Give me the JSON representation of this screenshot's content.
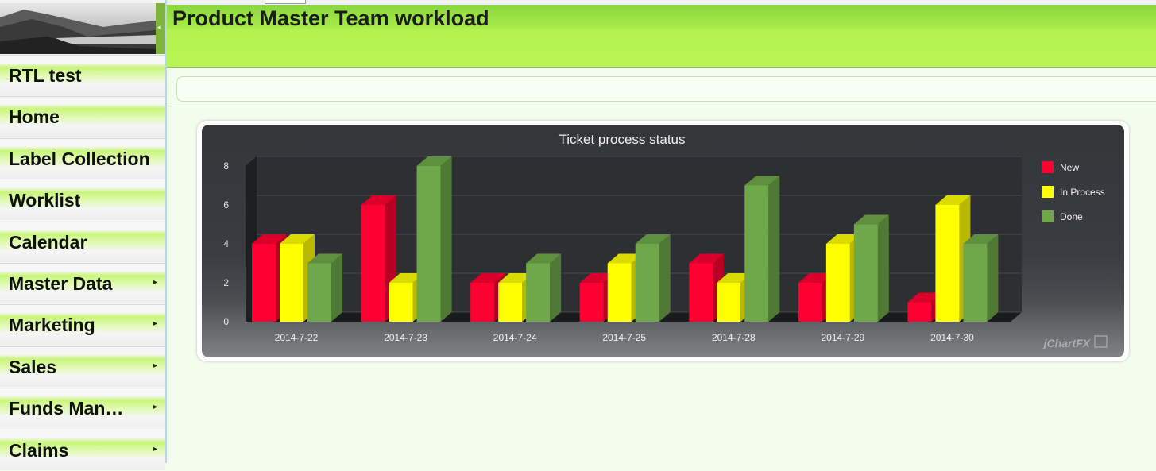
{
  "header": {
    "title": "Product Master Team workload"
  },
  "sidebar": {
    "items": [
      {
        "label": "RTL test",
        "has_submenu": false
      },
      {
        "label": "Home",
        "has_submenu": false
      },
      {
        "label": "Label Collection",
        "has_submenu": false
      },
      {
        "label": "Worklist",
        "has_submenu": false
      },
      {
        "label": "Calendar",
        "has_submenu": false
      },
      {
        "label": "Master Data",
        "has_submenu": true
      },
      {
        "label": "Marketing",
        "has_submenu": true
      },
      {
        "label": "Sales",
        "has_submenu": true
      },
      {
        "label": "Funds Man…",
        "has_submenu": true
      },
      {
        "label": "Claims",
        "has_submenu": true
      }
    ]
  },
  "chart_data": {
    "type": "bar",
    "title": "Ticket process status",
    "categories": [
      "2014-7-22",
      "2014-7-23",
      "2014-7-24",
      "2014-7-25",
      "2014-7-28",
      "2014-7-29",
      "2014-7-30"
    ],
    "series": [
      {
        "name": "New",
        "color": "#ff0033",
        "values": [
          4,
          6,
          2,
          2,
          3,
          2,
          1
        ]
      },
      {
        "name": "In Process",
        "color": "#ffff00",
        "values": [
          4,
          2,
          2,
          3,
          2,
          4,
          6
        ]
      },
      {
        "name": "Done",
        "color": "#6fa84a",
        "values": [
          3,
          8,
          3,
          4,
          7,
          5,
          4
        ]
      }
    ],
    "yticks": [
      "0",
      "2",
      "4",
      "6",
      "8"
    ],
    "ylim": [
      0,
      8
    ],
    "grid": true,
    "legend": "right",
    "watermark": "jChartFX"
  }
}
